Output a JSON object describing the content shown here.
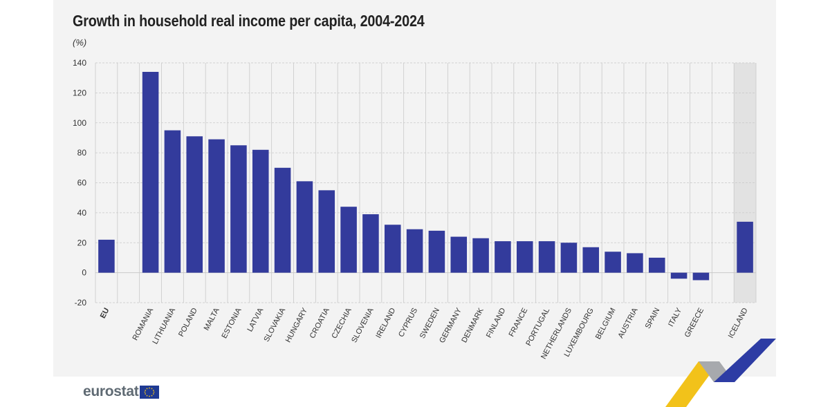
{
  "chart_data": {
    "type": "bar",
    "title": "Growth in household real income per capita, 2004-2024",
    "unit": "(%)",
    "xlabel": "",
    "ylabel": "",
    "ylim": [
      -20,
      140
    ],
    "yticks": [
      -20,
      0,
      20,
      40,
      60,
      80,
      100,
      120,
      140
    ],
    "grid": true,
    "categories": [
      "EU",
      "",
      "ROMANIA",
      "LITHUANIA",
      "POLAND",
      "MALTA",
      "ESTONIA",
      "LATVIA",
      "SLOVAKIA",
      "HUNGARY",
      "CROATIA",
      "CZECHIA",
      "SLOVENIA",
      "IRELAND",
      "CYPRUS",
      "SWEDEN",
      "GERMANY",
      "DENMARK",
      "FINLAND",
      "FRANCE",
      "PORTUGAL",
      "NETHERLANDS",
      "LUXEMBOURG",
      "BELGIUM",
      "AUSTRIA",
      "SPAIN",
      "ITALY",
      "GREECE",
      "",
      "ICELAND"
    ],
    "values": [
      22,
      null,
      134,
      95,
      91,
      89,
      85,
      82,
      70,
      61,
      55,
      44,
      39,
      32,
      29,
      28,
      24,
      23,
      21,
      21,
      21,
      20,
      17,
      14,
      13,
      10,
      -4,
      -5,
      null,
      34
    ],
    "highlighted_category": "ICELAND",
    "colors": {
      "bar": "#333b9c",
      "highlight_background": "#e2e2e2",
      "grid": "#c8c8c8",
      "axis_text": "#333333"
    }
  },
  "branding": {
    "logo_text": "eurostat",
    "flag_icon": "eu-flag-icon"
  },
  "decoration": {
    "colors": [
      "#f2c21a",
      "#a7a9ad",
      "#2d3ca4"
    ]
  }
}
